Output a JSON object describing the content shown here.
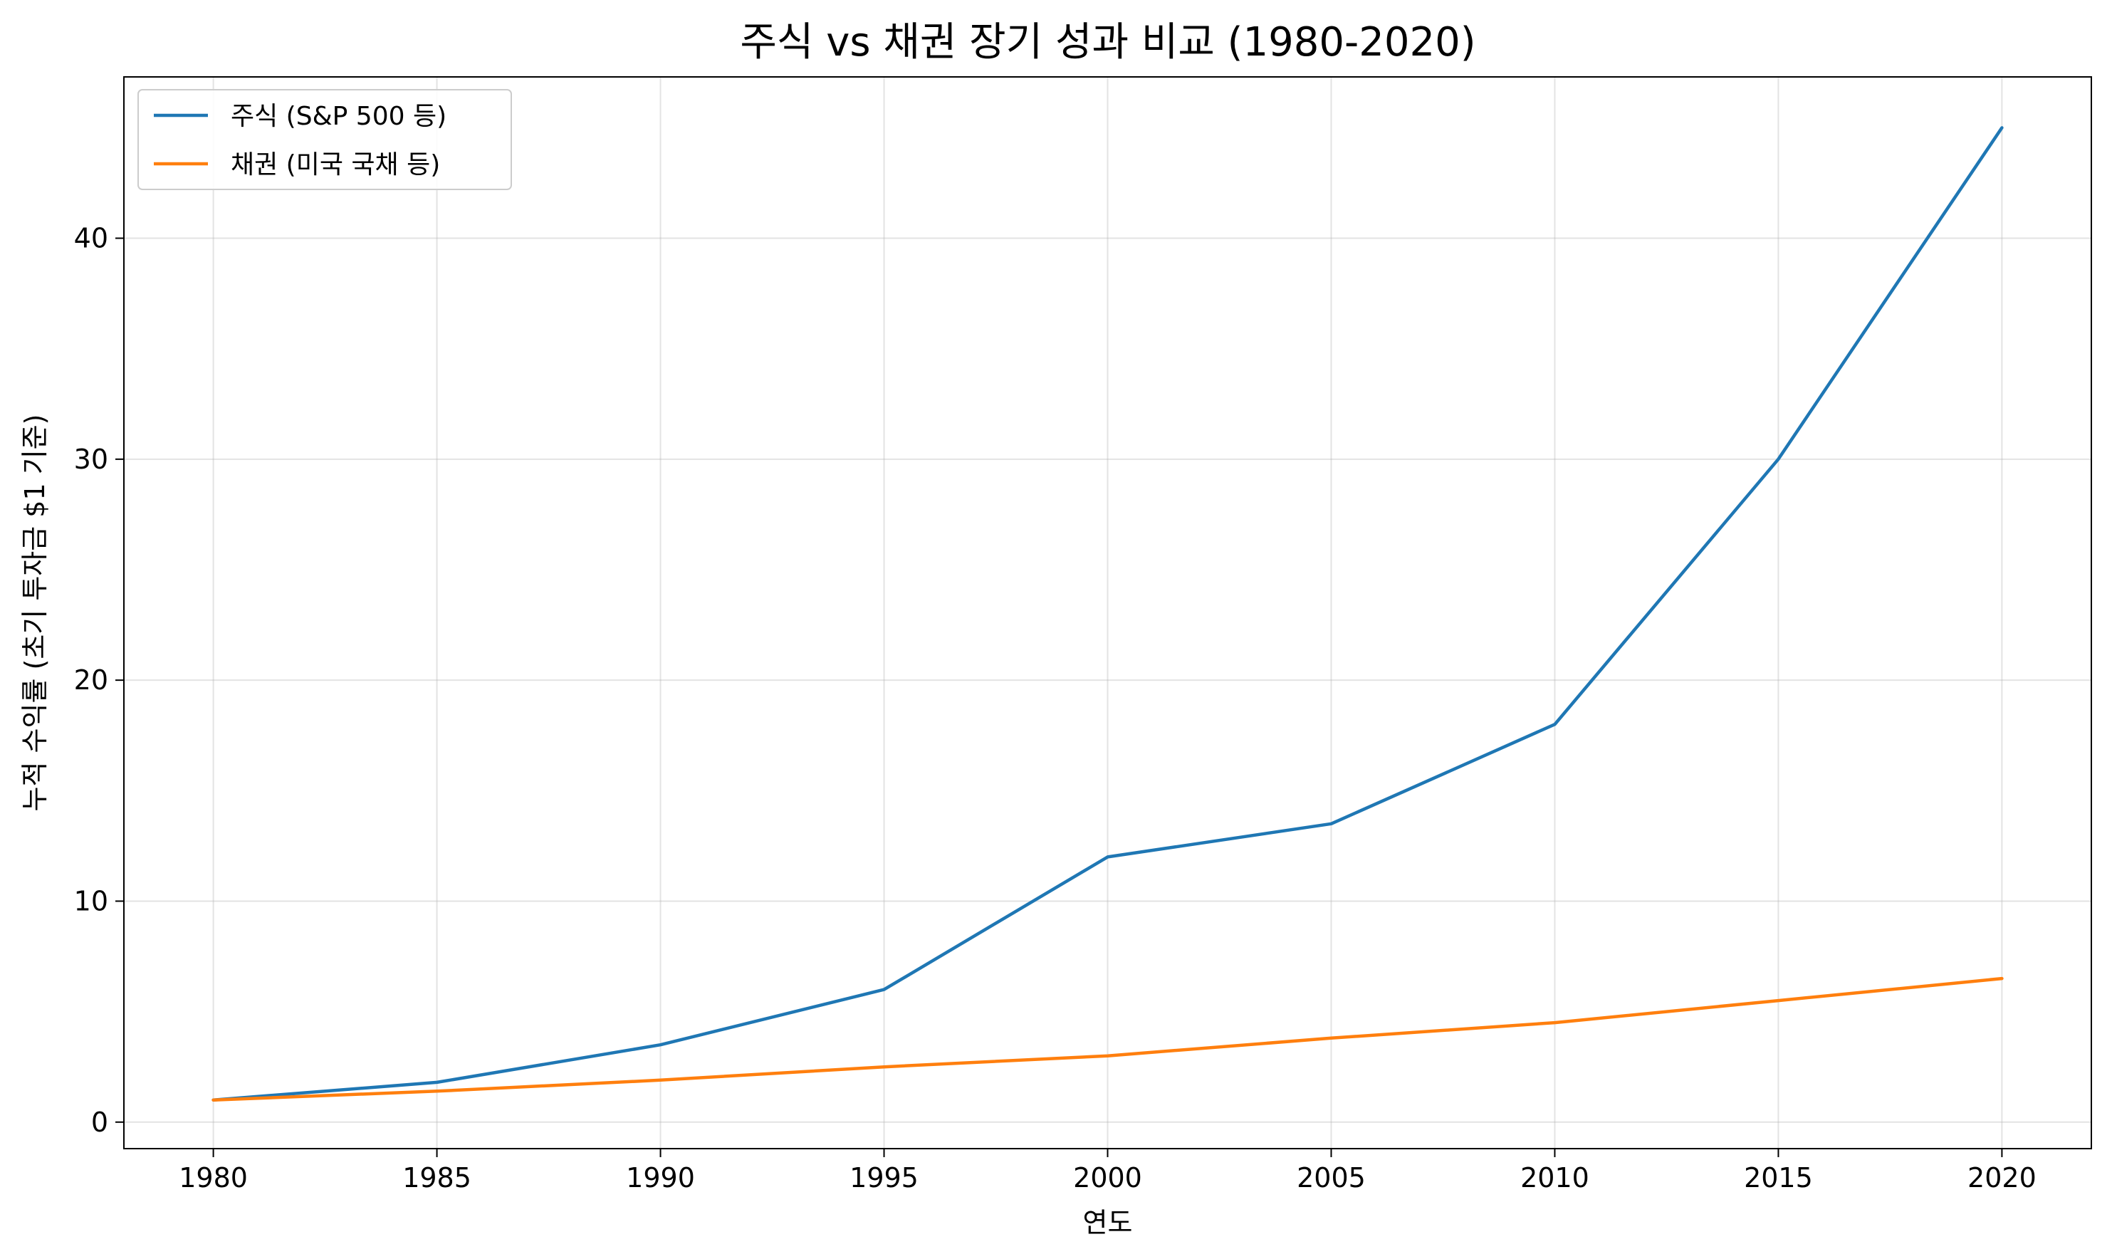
{
  "chart_data": {
    "type": "line",
    "title": "주식 vs 채권 장기 성과 비교 (1980-2020)",
    "xlabel": "연도",
    "ylabel": "누적 수익률 (초기 투자금 $1 기준)",
    "x": [
      1980,
      1985,
      1990,
      1995,
      2000,
      2005,
      2010,
      2015,
      2020
    ],
    "xlim": [
      1978,
      2022
    ],
    "ylim": [
      -1.2,
      47.3
    ],
    "xticks": [
      1980,
      1985,
      1990,
      1995,
      2000,
      2005,
      2010,
      2015,
      2020
    ],
    "yticks": [
      0,
      10,
      20,
      30,
      40
    ],
    "grid": true,
    "legend_position": "upper-left",
    "series": [
      {
        "name": "주식 (S&P 500 등)",
        "color": "#1f77b4",
        "values": [
          1.0,
          1.8,
          3.5,
          6.0,
          12.0,
          13.5,
          18.0,
          30.0,
          45.0
        ]
      },
      {
        "name": "채권 (미국 국채 등)",
        "color": "#ff7f0e",
        "values": [
          1.0,
          1.4,
          1.9,
          2.5,
          3.0,
          3.8,
          4.5,
          5.5,
          6.5
        ]
      }
    ]
  }
}
